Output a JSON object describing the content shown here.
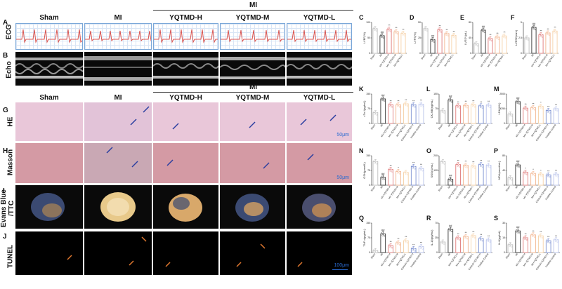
{
  "column_headers": {
    "top_group": "MI",
    "sham": "Sham",
    "mi": "MI",
    "h": "YQTMD-H",
    "m": "YQTMD-M",
    "l": "YQTMD-L"
  },
  "column_headers_lower": {
    "top_group": "MI",
    "sham": "Sham",
    "mi": "MI",
    "h": "YQTMD-H",
    "m": "YQTMD-M",
    "l": "YQTMD-L"
  },
  "row_letters": {
    "a": "A",
    "b": "B",
    "g": "G",
    "h": "H",
    "i": "I",
    "j": "J"
  },
  "row_labels": {
    "ecg": "ECG",
    "echo": "Echo",
    "he": "HE",
    "masson": "Masson",
    "ttc_line1": "Evans Blue",
    "ttc_line2": "/TTC",
    "tunel": "TUNEL"
  },
  "scale_labels": {
    "he": "50μm",
    "masson": "50μm",
    "tunel": "100μm"
  },
  "chart_data": [
    {
      "id": "C",
      "type": "bar",
      "ylabel": "LVEF(%)",
      "categories": [
        "Sham",
        "MI",
        "MI+YQTMD-H",
        "MI+YQTMD-M",
        "MI+YQTMD-L"
      ],
      "values": [
        80,
        57,
        78,
        70,
        65
      ],
      "ylim": [
        0,
        100
      ],
      "colors": [
        "#bdbdbd",
        "#333333",
        "#e07b7b",
        "#f2b48e",
        "#f6d2a8"
      ],
      "marks": [
        "",
        "##",
        "**",
        "**",
        "**"
      ]
    },
    {
      "id": "D",
      "type": "bar",
      "ylabel": "LVFS(%)",
      "categories": [
        "Sham",
        "MI",
        "MI+YQTMD-H",
        "MI+YQTMD-M",
        "MI+YQTMD-L"
      ],
      "values": [
        40,
        22,
        38,
        32,
        29
      ],
      "ylim": [
        0,
        50
      ],
      "colors": [
        "#bdbdbd",
        "#333333",
        "#e07b7b",
        "#f2b48e",
        "#f6d2a8"
      ],
      "marks": [
        "",
        "##",
        "**",
        "**",
        "**"
      ]
    },
    {
      "id": "E",
      "type": "bar",
      "ylabel": "LVESV(uL)",
      "categories": [
        "Sham",
        "MI",
        "MI+YQTMD-H",
        "MI+YQTMD-M",
        "MI+YQTMD-L"
      ],
      "values": [
        25,
        60,
        38,
        42,
        45
      ],
      "ylim": [
        0,
        80
      ],
      "colors": [
        "#bdbdbd",
        "#333333",
        "#e07b7b",
        "#f2b48e",
        "#f6d2a8"
      ],
      "marks": [
        "",
        "##",
        "**",
        "**",
        "**"
      ]
    },
    {
      "id": "F",
      "type": "bar",
      "ylabel": "LVESD(mm)",
      "categories": [
        "Sham",
        "MI",
        "MI+YQTMD-H",
        "MI+YQTMD-M",
        "MI+YQTMD-L"
      ],
      "values": [
        2.5,
        4.2,
        3.0,
        3.3,
        3.6
      ],
      "ylim": [
        0,
        5
      ],
      "colors": [
        "#bdbdbd",
        "#333333",
        "#e07b7b",
        "#f2b48e",
        "#f6d2a8"
      ],
      "marks": [
        "",
        "##",
        "**",
        "**",
        "**"
      ]
    },
    {
      "id": "K",
      "type": "bar",
      "ylabel": "cTn-I(pg/mL)",
      "categories": [
        "Sham",
        "MI",
        "MI+YQTMD-H",
        "MI+YQTMD-M",
        "MI+YQTMD-L",
        "Control+YQTMD-H",
        "Positive Control"
      ],
      "values": [
        55,
        125,
        95,
        95,
        100,
        95,
        98
      ],
      "ylim": [
        0,
        150
      ],
      "colors": [
        "#bdbdbd",
        "#333333",
        "#e07b7b",
        "#f2b48e",
        "#f6d2a8",
        "#7b8fd1",
        "#b7c1ea"
      ],
      "marks": [
        "",
        "##",
        "**",
        "**",
        "**",
        "**",
        "**"
      ]
    },
    {
      "id": "L",
      "type": "bar",
      "ylabel": "CK-MB(ng/mL)",
      "categories": [
        "Sham",
        "MI",
        "MI+YQTMD-H",
        "MI+YQTMD-M",
        "MI+YQTMD-L",
        "Control+YQTMD-H",
        "Positive Control"
      ],
      "values": [
        65,
        120,
        90,
        92,
        95,
        90,
        93
      ],
      "ylim": [
        0,
        150
      ],
      "colors": [
        "#bdbdbd",
        "#333333",
        "#e07b7b",
        "#f2b48e",
        "#f6d2a8",
        "#7b8fd1",
        "#b7c1ea"
      ],
      "marks": [
        "",
        "##",
        "**",
        "**",
        "**",
        "**",
        "**"
      ]
    },
    {
      "id": "M",
      "type": "bar",
      "ylabel": "LDH(U/L)",
      "categories": [
        "Sham",
        "MI",
        "MI+YQTMD-H",
        "MI+YQTMD-M",
        "MI+YQTMD-L",
        "Control+YQTMD-H",
        "Positive Control"
      ],
      "values": [
        800,
        1850,
        1300,
        1350,
        1450,
        1100,
        1250
      ],
      "ylim": [
        0,
        2500
      ],
      "colors": [
        "#bdbdbd",
        "#333333",
        "#e07b7b",
        "#f2b48e",
        "#f6d2a8",
        "#7b8fd1",
        "#b7c1ea"
      ],
      "marks": [
        "",
        "##",
        "**",
        "**",
        "*",
        "**",
        "**"
      ]
    },
    {
      "id": "N",
      "type": "bar",
      "ylabel": "GSH(μmol/L)",
      "categories": [
        "Sham",
        "MI",
        "MI+YQTMD-H",
        "MI+YQTMD-M",
        "MI+YQTMD-L",
        "Control+YQTMD-H",
        "Positive Control"
      ],
      "values": [
        120,
        40,
        80,
        70,
        65,
        95,
        85
      ],
      "ylim": [
        0,
        150
      ],
      "colors": [
        "#bdbdbd",
        "#333333",
        "#e07b7b",
        "#f2b48e",
        "#f6d2a8",
        "#7b8fd1",
        "#b7c1ea"
      ],
      "marks": [
        "",
        "##",
        "**",
        "*",
        "",
        "**",
        "**"
      ]
    },
    {
      "id": "O",
      "type": "bar",
      "ylabel": "SOD(U/mL)",
      "categories": [
        "Sham",
        "MI",
        "MI+YQTMD-H",
        "MI+YQTMD-M",
        "MI+YQTMD-L",
        "Control+YQTMD-H",
        "Positive Control"
      ],
      "values": [
        160,
        40,
        140,
        135,
        130,
        140,
        135
      ],
      "ylim": [
        0,
        200
      ],
      "colors": [
        "#bdbdbd",
        "#333333",
        "#e07b7b",
        "#f2b48e",
        "#f6d2a8",
        "#7b8fd1",
        "#b7c1ea"
      ],
      "marks": [
        "",
        "##",
        "**",
        "**",
        "**",
        "**",
        "**"
      ]
    },
    {
      "id": "P",
      "type": "bar",
      "ylabel": "MDA(nmol/mL)",
      "categories": [
        "Sham",
        "MI",
        "MI+YQTMD-H",
        "MI+YQTMD-M",
        "MI+YQTMD-L",
        "Control+YQTMD-H",
        "Positive Control"
      ],
      "values": [
        20,
        55,
        35,
        32,
        30,
        28,
        30
      ],
      "ylim": [
        0,
        80
      ],
      "colors": [
        "#bdbdbd",
        "#333333",
        "#e07b7b",
        "#f2b48e",
        "#f6d2a8",
        "#7b8fd1",
        "#b7c1ea"
      ],
      "marks": [
        "",
        "##",
        "*",
        "*",
        "*",
        "**",
        "**"
      ]
    },
    {
      "id": "Q",
      "type": "bar",
      "ylabel": "TNF-α(pg/mL)",
      "categories": [
        "Sham",
        "MI",
        "MI+YQTMD-H",
        "MI+YQTMD-M",
        "MI+YQTMD-L",
        "Control+YQTMD-H",
        "Positive Control"
      ],
      "values": [
        10,
        95,
        35,
        50,
        60,
        20,
        30
      ],
      "ylim": [
        0,
        150
      ],
      "colors": [
        "#bdbdbd",
        "#333333",
        "#e07b7b",
        "#f2b48e",
        "#f6d2a8",
        "#7b8fd1",
        "#b7c1ea"
      ],
      "marks": [
        "",
        "##",
        "**",
        "**",
        "**",
        "**",
        "**"
      ]
    },
    {
      "id": "R",
      "type": "bar",
      "ylabel": "IL-1β(pg/mL)",
      "categories": [
        "Sham",
        "MI",
        "MI+YQTMD-H",
        "MI+YQTMD-M",
        "MI+YQTMD-L",
        "Control+YQTMD-H",
        "Positive Control"
      ],
      "values": [
        25,
        55,
        35,
        38,
        40,
        33,
        30
      ],
      "ylim": [
        0,
        70
      ],
      "colors": [
        "#bdbdbd",
        "#333333",
        "#e07b7b",
        "#f2b48e",
        "#f6d2a8",
        "#7b8fd1",
        "#b7c1ea"
      ],
      "marks": [
        "",
        "##",
        "**",
        "**",
        "**",
        "**",
        "**"
      ]
    },
    {
      "id": "S",
      "type": "bar",
      "ylabel": "IL-6(pg/mL)",
      "categories": [
        "Sham",
        "MI",
        "MI+YQTMD-H",
        "MI+YQTMD-M",
        "MI+YQTMD-L",
        "Control+YQTMD-H",
        "Positive Control"
      ],
      "values": [
        8,
        22,
        15,
        18,
        17,
        12,
        13
      ],
      "ylim": [
        0,
        30
      ],
      "colors": [
        "#bdbdbd",
        "#333333",
        "#e07b7b",
        "#f2b48e",
        "#f6d2a8",
        "#7b8fd1",
        "#b7c1ea"
      ],
      "marks": [
        "",
        "##",
        "**",
        "**",
        "**",
        "**",
        "**"
      ]
    }
  ]
}
